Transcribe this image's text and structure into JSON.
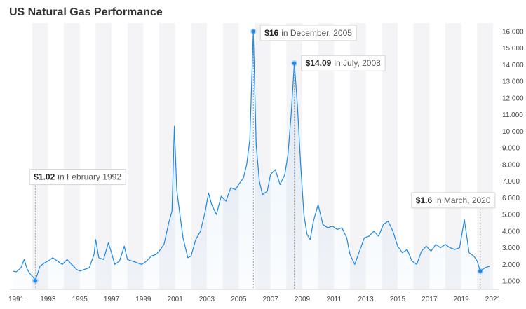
{
  "chart_data": {
    "type": "line",
    "title": "US Natural Gas Performance",
    "xlabel": "",
    "ylabel": "",
    "ylim": [
      0.5,
      16.5
    ],
    "xlim": [
      1990.6,
      2021.4
    ],
    "grid": "alternating vertical bands",
    "yticks": [
      "1.000",
      "2.000",
      "3.000",
      "4.000",
      "5.000",
      "6.000",
      "7.000",
      "8.000",
      "9.000",
      "10.000",
      "11.000",
      "12.000",
      "13.000",
      "14.000",
      "15.000",
      "16.000"
    ],
    "xticks": [
      "1991",
      "1993",
      "1995",
      "1997",
      "1999",
      "2001",
      "2003",
      "2005",
      "2007",
      "2009",
      "2011",
      "2013",
      "2015",
      "2017",
      "2019",
      "2021"
    ],
    "series": [
      {
        "color": "#1e88e5",
        "x": [
          1990.8,
          1991.0,
          1991.3,
          1991.5,
          1991.7,
          1991.9,
          1992.1,
          1992.2,
          1992.5,
          1992.8,
          1993.0,
          1993.3,
          1993.6,
          1993.9,
          1994.2,
          1994.5,
          1994.8,
          1995.0,
          1995.3,
          1995.6,
          1995.9,
          1996.0,
          1996.2,
          1996.5,
          1996.8,
          1997.0,
          1997.2,
          1997.5,
          1997.8,
          1998.0,
          1998.3,
          1998.6,
          1998.9,
          1999.2,
          1999.5,
          1999.8,
          2000.0,
          2000.3,
          2000.6,
          2000.8,
          2000.95,
          2001.1,
          2001.3,
          2001.5,
          2001.8,
          2002.0,
          2002.3,
          2002.6,
          2002.9,
          2003.1,
          2003.3,
          2003.6,
          2003.9,
          2004.2,
          2004.5,
          2004.8,
          2005.0,
          2005.3,
          2005.5,
          2005.7,
          2005.8,
          2005.92,
          2006.1,
          2006.3,
          2006.5,
          2006.8,
          2007.0,
          2007.3,
          2007.6,
          2007.9,
          2008.1,
          2008.3,
          2008.5,
          2008.7,
          2008.9,
          2009.1,
          2009.3,
          2009.5,
          2009.7,
          2010.0,
          2010.3,
          2010.6,
          2010.9,
          2011.2,
          2011.5,
          2011.8,
          2012.0,
          2012.3,
          2012.6,
          2012.9,
          2013.2,
          2013.5,
          2013.8,
          2014.1,
          2014.4,
          2014.7,
          2015.0,
          2015.3,
          2015.6,
          2015.9,
          2016.2,
          2016.5,
          2016.8,
          2017.1,
          2017.4,
          2017.7,
          2018.0,
          2018.3,
          2018.6,
          2018.9,
          2019.2,
          2019.5,
          2019.8,
          2020.0,
          2020.2,
          2020.5,
          2020.8
        ],
        "y": [
          1.6,
          1.55,
          1.8,
          2.3,
          1.7,
          1.4,
          1.2,
          1.02,
          1.9,
          2.1,
          2.2,
          2.4,
          2.2,
          2.0,
          2.3,
          2.0,
          1.7,
          1.6,
          1.7,
          1.8,
          2.6,
          3.5,
          2.4,
          2.3,
          3.3,
          2.7,
          2.0,
          2.2,
          3.1,
          2.3,
          2.2,
          2.1,
          2.0,
          2.2,
          2.5,
          2.6,
          2.8,
          3.2,
          4.5,
          5.2,
          10.3,
          6.5,
          5.0,
          3.6,
          2.4,
          2.5,
          3.5,
          4.0,
          5.2,
          6.3,
          5.6,
          5.0,
          6.1,
          5.8,
          6.6,
          6.5,
          6.8,
          7.2,
          8.0,
          9.5,
          12.5,
          16.0,
          9.2,
          7.0,
          6.2,
          6.4,
          7.4,
          7.7,
          6.8,
          7.4,
          8.6,
          11.0,
          14.09,
          11.5,
          8.0,
          5.0,
          3.8,
          3.5,
          4.6,
          5.6,
          4.4,
          4.2,
          4.3,
          4.1,
          4.2,
          3.6,
          2.6,
          2.0,
          2.8,
          3.6,
          3.7,
          4.0,
          3.7,
          4.4,
          4.6,
          4.0,
          3.1,
          2.7,
          2.9,
          2.2,
          2.0,
          2.8,
          3.1,
          2.8,
          3.2,
          3.0,
          3.2,
          3.0,
          2.9,
          3.0,
          4.7,
          2.7,
          2.5,
          2.2,
          1.6,
          1.8,
          1.9
        ]
      }
    ],
    "annotations": [
      {
        "value": "$16",
        "text": "in December, 2005",
        "x": 2005.92,
        "y": 16.0
      },
      {
        "value": "$14.09",
        "text": "in July, 2008",
        "x": 2008.5,
        "y": 14.09
      },
      {
        "value": "$1.02",
        "text": "in February 1992",
        "x": 1992.2,
        "y": 1.02
      },
      {
        "value": "$1.6",
        "text": "in March, 2020",
        "x": 2020.2,
        "y": 1.6
      }
    ]
  }
}
